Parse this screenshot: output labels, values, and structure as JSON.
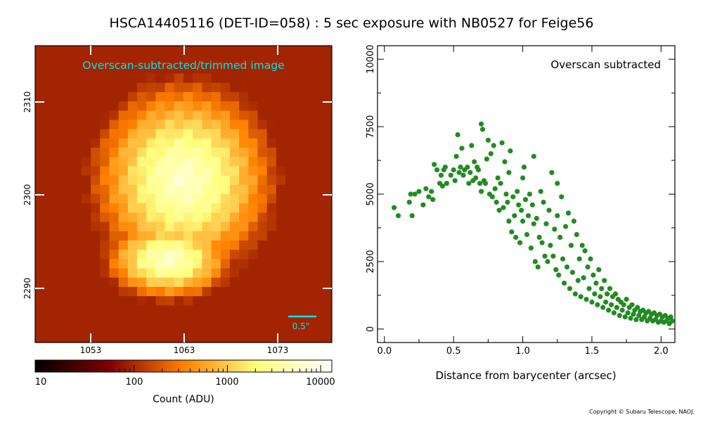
{
  "page": {
    "title": "HSCA14405116 (DET-ID=058) :  5 sec exposure with NB0527 for Feige56",
    "copyright": "Copyright © Subaru Telescope, NAOJ."
  },
  "colors": {
    "scatter_points": "#228B22",
    "image_label": "#00e5ee",
    "scale_bar": "#00e5ee"
  },
  "chart_data": [
    {
      "type": "heatmap",
      "caption": "Overscan-subtracted/trimmed image",
      "x_ticks": [
        "1053",
        "1063",
        "1073"
      ],
      "y_ticks": [
        "2310",
        "2300",
        "2290"
      ],
      "scale_bar_label": "0.5\"",
      "colorbar": {
        "label": "Count (ADU)",
        "ticks": [
          "10",
          "100",
          "1000",
          "10000"
        ],
        "scale": "log",
        "colormap": "afmhot"
      },
      "peak_region_x": [
        1060,
        1068
      ],
      "peak_region_y": [
        2296,
        2305
      ]
    },
    {
      "type": "scatter",
      "annotation": "Overscan subtracted",
      "xlabel": "Distance from barycenter (arcsec)",
      "ylabel": "",
      "xlim": [
        -0.05,
        2.1
      ],
      "ylim": [
        -500,
        10500
      ],
      "x_ticks": [
        "0.0",
        "0.5",
        "1.0",
        "1.5",
        "2.0"
      ],
      "y_ticks": [
        "0",
        "2500",
        "5000",
        "7500",
        "10000"
      ],
      "points": [
        [
          0.07,
          4500
        ],
        [
          0.1,
          4200
        ],
        [
          0.18,
          4700
        ],
        [
          0.19,
          5000
        ],
        [
          0.2,
          4200
        ],
        [
          0.22,
          5000
        ],
        [
          0.25,
          5100
        ],
        [
          0.28,
          4600
        ],
        [
          0.3,
          5200
        ],
        [
          0.32,
          4900
        ],
        [
          0.34,
          5100
        ],
        [
          0.35,
          4800
        ],
        [
          0.36,
          6100
        ],
        [
          0.38,
          5900
        ],
        [
          0.4,
          5400
        ],
        [
          0.41,
          5700
        ],
        [
          0.42,
          5300
        ],
        [
          0.43,
          5900
        ],
        [
          0.44,
          6000
        ],
        [
          0.45,
          5400
        ],
        [
          0.48,
          5700
        ],
        [
          0.5,
          5900
        ],
        [
          0.51,
          5500
        ],
        [
          0.52,
          6400
        ],
        [
          0.53,
          7200
        ],
        [
          0.54,
          5800
        ],
        [
          0.55,
          6000
        ],
        [
          0.56,
          6700
        ],
        [
          0.57,
          5700
        ],
        [
          0.58,
          5900
        ],
        [
          0.6,
          6000
        ],
        [
          0.61,
          5400
        ],
        [
          0.62,
          5800
        ],
        [
          0.63,
          6800
        ],
        [
          0.64,
          5500
        ],
        [
          0.65,
          6200
        ],
        [
          0.66,
          5600
        ],
        [
          0.67,
          6000
        ],
        [
          0.68,
          5900
        ],
        [
          0.69,
          5400
        ],
        [
          0.7,
          7600
        ],
        [
          0.7,
          5100
        ],
        [
          0.71,
          7400
        ],
        [
          0.72,
          5500
        ],
        [
          0.73,
          5400
        ],
        [
          0.74,
          6300
        ],
        [
          0.75,
          7000
        ],
        [
          0.76,
          5000
        ],
        [
          0.77,
          6500
        ],
        [
          0.78,
          4900
        ],
        [
          0.79,
          6800
        ],
        [
          0.8,
          5200
        ],
        [
          0.81,
          4700
        ],
        [
          0.82,
          5600
        ],
        [
          0.83,
          4400
        ],
        [
          0.84,
          5400
        ],
        [
          0.85,
          6900
        ],
        [
          0.86,
          4500
        ],
        [
          0.87,
          6200
        ],
        [
          0.88,
          5000
        ],
        [
          0.89,
          4700
        ],
        [
          0.9,
          4000
        ],
        [
          0.9,
          5800
        ],
        [
          0.91,
          6600
        ],
        [
          0.92,
          3600
        ],
        [
          0.93,
          4900
        ],
        [
          0.94,
          4200
        ],
        [
          0.95,
          3400
        ],
        [
          0.96,
          5100
        ],
        [
          0.97,
          4600
        ],
        [
          0.98,
          3200
        ],
        [
          0.99,
          4400
        ],
        [
          1.0,
          5600
        ],
        [
          1.0,
          4000
        ],
        [
          1.01,
          6000
        ],
        [
          1.02,
          4800
        ],
        [
          1.03,
          3500
        ],
        [
          1.04,
          4200
        ],
        [
          1.05,
          5000
        ],
        [
          1.06,
          3000
        ],
        [
          1.07,
          4600
        ],
        [
          1.08,
          6400
        ],
        [
          1.08,
          3900
        ],
        [
          1.09,
          2500
        ],
        [
          1.1,
          4100
        ],
        [
          1.11,
          2300
        ],
        [
          1.12,
          3400
        ],
        [
          1.13,
          5100
        ],
        [
          1.14,
          3200
        ],
        [
          1.15,
          4700
        ],
        [
          1.16,
          2700
        ],
        [
          1.17,
          3900
        ],
        [
          1.18,
          2500
        ],
        [
          1.19,
          4400
        ],
        [
          1.2,
          3100
        ],
        [
          1.21,
          5800
        ],
        [
          1.22,
          2700
        ],
        [
          1.23,
          3700
        ],
        [
          1.24,
          2200
        ],
        [
          1.25,
          4200
        ],
        [
          1.25,
          5400
        ],
        [
          1.26,
          2000
        ],
        [
          1.27,
          3400
        ],
        [
          1.28,
          4900
        ],
        [
          1.29,
          2600
        ],
        [
          1.3,
          1700
        ],
        [
          1.31,
          3800
        ],
        [
          1.32,
          2300
        ],
        [
          1.33,
          4300
        ],
        [
          1.34,
          1500
        ],
        [
          1.35,
          3100
        ],
        [
          1.36,
          2100
        ],
        [
          1.37,
          4000
        ],
        [
          1.38,
          1300
        ],
        [
          1.39,
          3500
        ],
        [
          1.4,
          1800
        ],
        [
          1.41,
          2600
        ],
        [
          1.42,
          1200
        ],
        [
          1.43,
          3100
        ],
        [
          1.44,
          1900
        ],
        [
          1.45,
          2900
        ],
        [
          1.46,
          1100
        ],
        [
          1.47,
          2300
        ],
        [
          1.48,
          1500
        ],
        [
          1.49,
          2600
        ],
        [
          1.5,
          1000
        ],
        [
          1.51,
          2000
        ],
        [
          1.52,
          1300
        ],
        [
          1.53,
          1700
        ],
        [
          1.54,
          900
        ],
        [
          1.55,
          2200
        ],
        [
          1.56,
          1200
        ],
        [
          1.57,
          1500
        ],
        [
          1.58,
          800
        ],
        [
          1.59,
          1800
        ],
        [
          1.6,
          1000
        ],
        [
          1.61,
          1300
        ],
        [
          1.62,
          700
        ],
        [
          1.63,
          1500
        ],
        [
          1.64,
          900
        ],
        [
          1.65,
          1200
        ],
        [
          1.66,
          600
        ],
        [
          1.67,
          1300
        ],
        [
          1.68,
          800
        ],
        [
          1.69,
          1100
        ],
        [
          1.7,
          500
        ],
        [
          1.71,
          1000
        ],
        [
          1.72,
          700
        ],
        [
          1.73,
          900
        ],
        [
          1.74,
          450
        ],
        [
          1.75,
          1100
        ],
        [
          1.76,
          600
        ],
        [
          1.77,
          800
        ],
        [
          1.78,
          400
        ],
        [
          1.79,
          900
        ],
        [
          1.8,
          550
        ],
        [
          1.81,
          700
        ],
        [
          1.82,
          350
        ],
        [
          1.83,
          800
        ],
        [
          1.84,
          500
        ],
        [
          1.85,
          650
        ],
        [
          1.86,
          350
        ],
        [
          1.87,
          700
        ],
        [
          1.88,
          450
        ],
        [
          1.89,
          600
        ],
        [
          1.9,
          300
        ],
        [
          1.91,
          650
        ],
        [
          1.92,
          400
        ],
        [
          1.93,
          550
        ],
        [
          1.94,
          300
        ],
        [
          1.95,
          600
        ],
        [
          1.96,
          350
        ],
        [
          1.97,
          500
        ],
        [
          1.98,
          250
        ],
        [
          1.99,
          550
        ],
        [
          2.0,
          300
        ],
        [
          2.01,
          450
        ],
        [
          2.02,
          250
        ],
        [
          2.03,
          500
        ],
        [
          2.04,
          300
        ],
        [
          2.05,
          400
        ],
        [
          2.06,
          200
        ],
        [
          2.07,
          450
        ],
        [
          2.08,
          300
        ],
        [
          2.09,
          350
        ],
        [
          2.1,
          250
        ]
      ]
    }
  ]
}
